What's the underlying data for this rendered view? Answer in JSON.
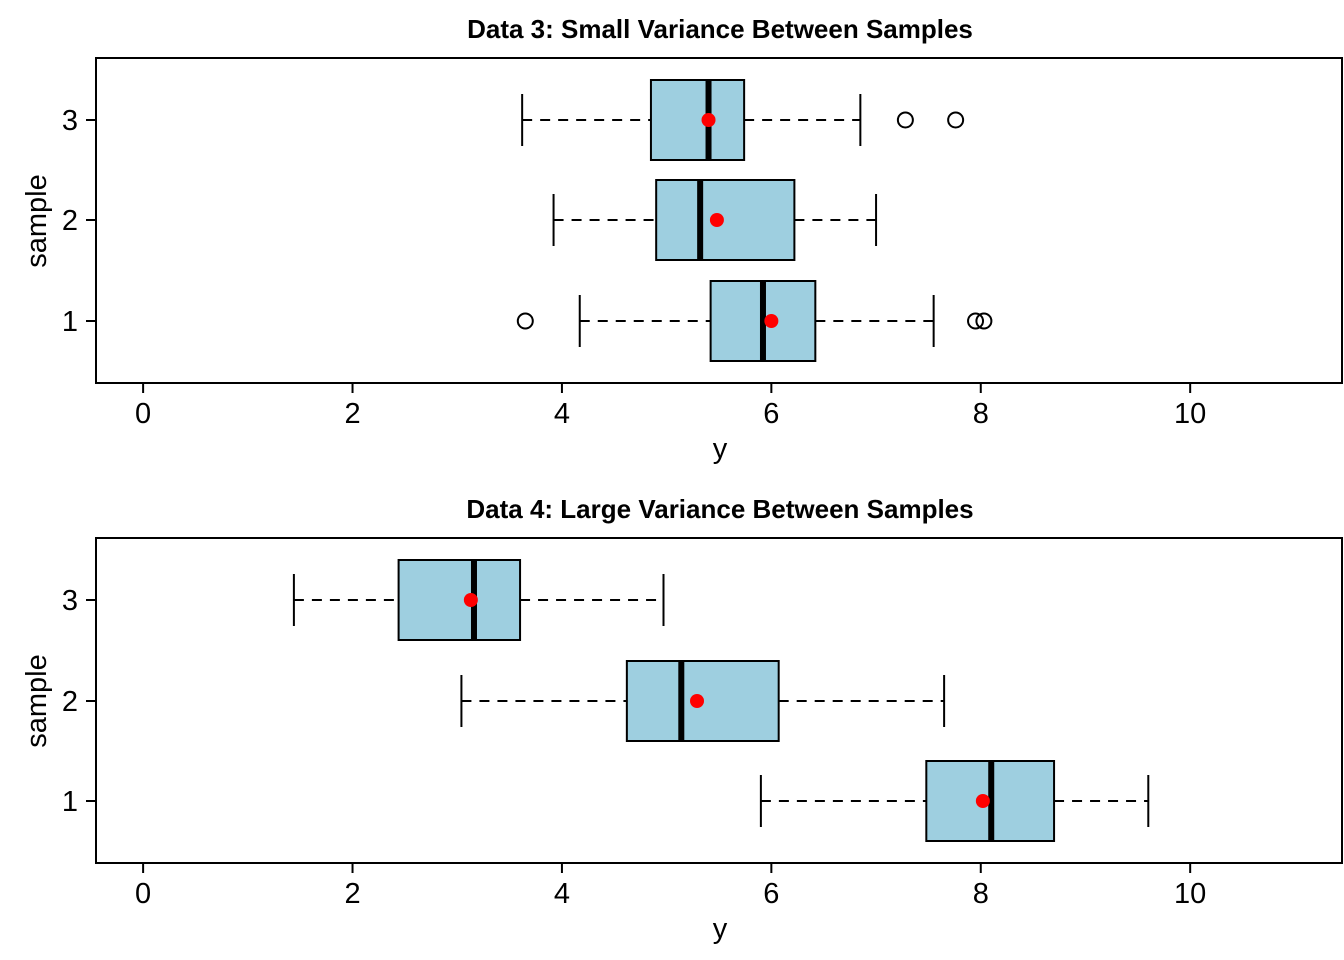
{
  "colors": {
    "box_fill": "#9ecfe0",
    "mean_marker": "#ff0000",
    "line": "#000000",
    "background": "#ffffff"
  },
  "chart_data": [
    {
      "type": "boxplot",
      "orientation": "horizontal",
      "title": "Data 3: Small Variance Between Samples",
      "xlabel": "y",
      "ylabel": "sample",
      "xlim": [
        -0.45,
        11.45
      ],
      "x_ticks": [
        0,
        2,
        4,
        6,
        8,
        10
      ],
      "categories": [
        "1",
        "2",
        "3"
      ],
      "grid": false,
      "series": [
        {
          "category": "1",
          "whisker_low": 4.17,
          "q1": 5.42,
          "median": 5.92,
          "q3": 6.42,
          "whisker_high": 7.55,
          "mean": 6.0,
          "outliers": [
            3.65,
            7.95,
            8.03
          ]
        },
        {
          "category": "2",
          "whisker_low": 3.92,
          "q1": 4.9,
          "median": 5.32,
          "q3": 6.22,
          "whisker_high": 7.0,
          "mean": 5.48,
          "outliers": []
        },
        {
          "category": "3",
          "whisker_low": 3.62,
          "q1": 4.85,
          "median": 5.4,
          "q3": 5.74,
          "whisker_high": 6.85,
          "mean": 5.4,
          "outliers": [
            7.28,
            7.76
          ]
        }
      ]
    },
    {
      "type": "boxplot",
      "orientation": "horizontal",
      "title": "Data 4: Large Variance Between Samples",
      "xlabel": "y",
      "ylabel": "sample",
      "xlim": [
        -0.45,
        11.45
      ],
      "x_ticks": [
        0,
        2,
        4,
        6,
        8,
        10
      ],
      "categories": [
        "1",
        "2",
        "3"
      ],
      "grid": false,
      "series": [
        {
          "category": "1",
          "whisker_low": 5.9,
          "q1": 7.48,
          "median": 8.1,
          "q3": 8.7,
          "whisker_high": 9.6,
          "mean": 8.02,
          "outliers": []
        },
        {
          "category": "2",
          "whisker_low": 3.04,
          "q1": 4.62,
          "median": 5.14,
          "q3": 6.07,
          "whisker_high": 7.65,
          "mean": 5.29,
          "outliers": []
        },
        {
          "category": "3",
          "whisker_low": 1.44,
          "q1": 2.44,
          "median": 3.16,
          "q3": 3.6,
          "whisker_high": 4.97,
          "mean": 3.13,
          "outliers": []
        }
      ]
    }
  ]
}
